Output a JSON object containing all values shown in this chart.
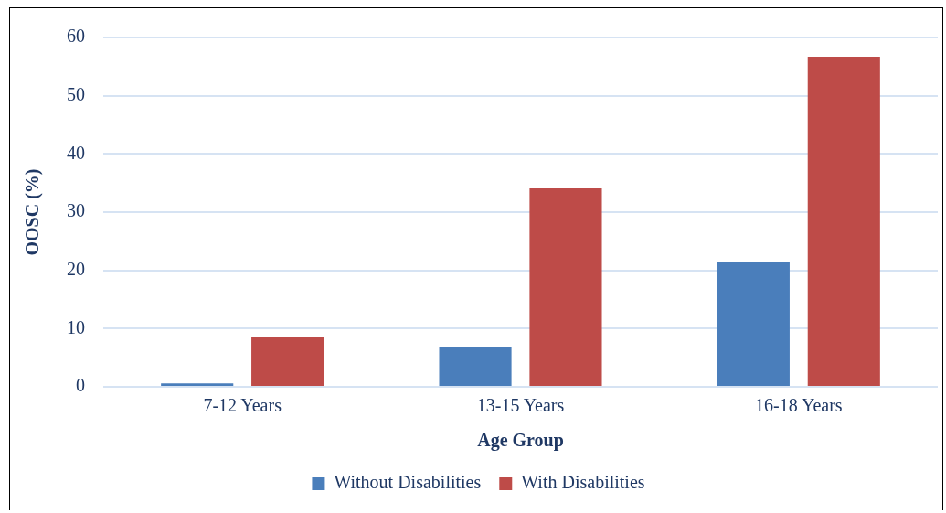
{
  "chart_data": {
    "type": "bar",
    "xlabel": "Age Group",
    "ylabel": "OOSC (%)",
    "categories": [
      "7-12 Years",
      "13-15 Years",
      "16-18 Years"
    ],
    "series": [
      {
        "name": "Without Disabilities",
        "color": "#4a7ebb",
        "values": [
          0.6,
          6.8,
          21.5
        ]
      },
      {
        "name": "With Disabilities",
        "color": "#be4b48",
        "values": [
          8.5,
          34.1,
          56.7
        ]
      }
    ],
    "ylim": [
      0,
      60
    ],
    "yticks": [
      0,
      10,
      20,
      30,
      40,
      50,
      60
    ],
    "grid": "y",
    "legend": "bottom"
  }
}
